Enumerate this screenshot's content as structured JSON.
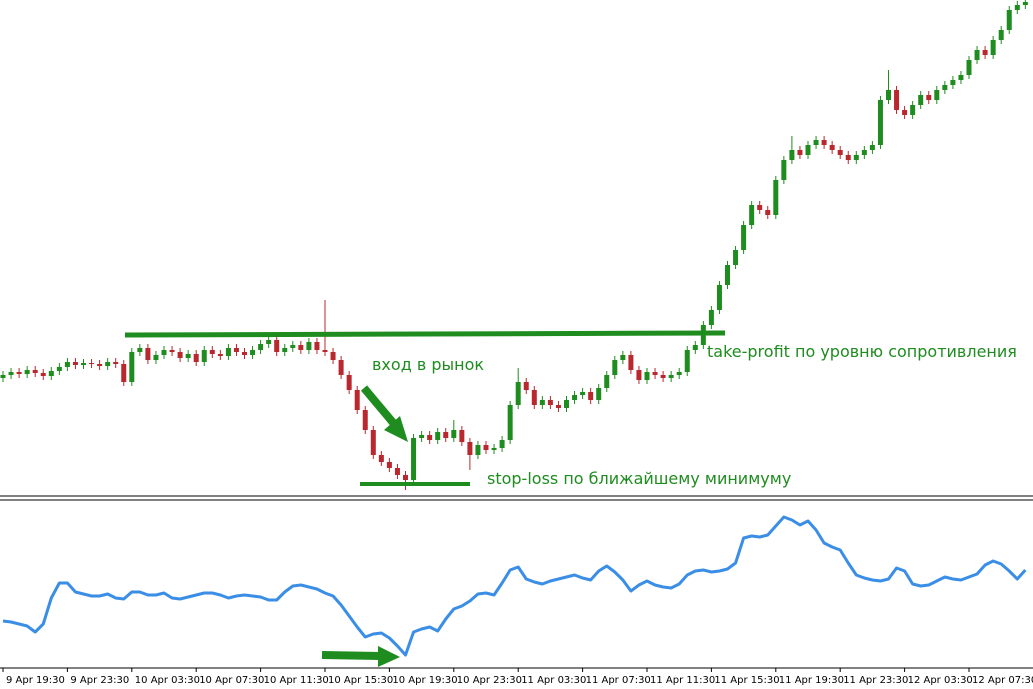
{
  "chart_data": [
    {
      "type": "candlestick",
      "categories": [
        "9 Apr 19:30",
        null,
        null,
        null,
        null,
        null,
        null,
        null,
        "9 Apr 23:30",
        null,
        null,
        null,
        null,
        null,
        null,
        null,
        "10 Apr 03:30",
        null,
        null,
        null,
        null,
        null,
        null,
        null,
        "10 Apr 07:30",
        null,
        null,
        null,
        null,
        null,
        null,
        null,
        "10 Apr 11:30",
        null,
        null,
        null,
        null,
        null,
        null,
        null,
        "10 Apr 15:30",
        null,
        null,
        null,
        null,
        null,
        null,
        null,
        "10 Apr 19:30",
        null,
        null,
        null,
        null,
        null,
        null,
        null,
        "10 Apr 23:30",
        null,
        null,
        null,
        null,
        null,
        null,
        null,
        "11 Apr 03:30",
        null,
        null,
        null,
        null,
        null,
        null,
        null,
        "11 Apr 07:30",
        null,
        null,
        null,
        null,
        null,
        null,
        null,
        "11 Apr 11:30",
        null,
        null,
        null,
        null,
        null,
        null,
        null,
        "11 Apr 15:30",
        null,
        null,
        null,
        null,
        null,
        null,
        null,
        "11 Apr 19:30",
        null,
        null,
        null,
        null,
        null,
        null,
        null,
        "11 Apr 23:30",
        null,
        null,
        null,
        null,
        null,
        null,
        null,
        "12 Apr 03:30",
        null,
        null,
        null,
        null,
        null,
        null,
        null,
        "12 Apr 07:30",
        null,
        null,
        null,
        null,
        null,
        null,
        null
      ],
      "open": [
        122,
        125,
        128,
        126,
        130,
        127,
        124,
        129,
        133,
        138,
        135,
        137,
        136,
        134,
        138,
        136,
        118,
        148,
        152,
        140,
        145,
        150,
        148,
        142,
        146,
        138,
        150,
        146,
        144,
        152,
        148,
        145,
        150,
        156,
        160,
        148,
        152,
        155,
        150,
        158,
        150,
        148,
        140,
        125,
        110,
        90,
        70,
        45,
        38,
        32,
        25,
        20,
        62,
        65,
        60,
        68,
        62,
        70,
        58,
        45,
        55,
        50,
        52,
        60,
        95,
        118,
        110,
        95,
        100,
        95,
        92,
        100,
        105,
        108,
        100,
        112,
        125,
        140,
        145,
        130,
        120,
        128,
        125,
        122,
        125,
        128,
        150,
        155,
        175,
        190,
        215,
        235,
        250,
        275,
        295,
        290,
        285,
        320,
        340,
        350,
        345,
        355,
        360,
        355,
        350,
        345,
        340,
        345,
        350,
        355,
        400,
        410,
        390,
        385,
        395,
        405,
        400,
        410,
        415,
        420,
        425,
        440,
        450,
        445,
        460,
        470,
        490,
        495
      ],
      "high": [
        129,
        132,
        132,
        134,
        134,
        131,
        133,
        137,
        142,
        142,
        141,
        141,
        140,
        142,
        142,
        140,
        152,
        156,
        156,
        149,
        154,
        154,
        152,
        150,
        150,
        154,
        154,
        150,
        156,
        156,
        152,
        154,
        160,
        164,
        164,
        156,
        159,
        159,
        162,
        162,
        200,
        152,
        144,
        129,
        114,
        94,
        74,
        49,
        42,
        36,
        29,
        66,
        69,
        69,
        72,
        72,
        80,
        74,
        62,
        59,
        59,
        56,
        64,
        99,
        132,
        122,
        114,
        104,
        104,
        99,
        104,
        109,
        112,
        112,
        116,
        129,
        144,
        149,
        149,
        134,
        132,
        132,
        129,
        129,
        132,
        154,
        159,
        179,
        194,
        219,
        239,
        254,
        279,
        299,
        299,
        294,
        324,
        344,
        364,
        354,
        359,
        364,
        364,
        359,
        354,
        349,
        349,
        354,
        359,
        404,
        430,
        414,
        394,
        399,
        409,
        409,
        414,
        419,
        424,
        429,
        444,
        454,
        454,
        464,
        474,
        494,
        499,
        502
      ],
      "low": [
        118,
        121,
        122,
        122,
        123,
        120,
        120,
        125,
        129,
        131,
        131,
        132,
        130,
        130,
        132,
        114,
        114,
        144,
        136,
        136,
        141,
        144,
        138,
        138,
        134,
        134,
        142,
        140,
        140,
        144,
        141,
        141,
        146,
        152,
        144,
        144,
        148,
        146,
        146,
        146,
        144,
        136,
        121,
        106,
        86,
        66,
        41,
        34,
        28,
        21,
        10,
        16,
        58,
        56,
        56,
        58,
        58,
        54,
        30,
        41,
        46,
        46,
        48,
        56,
        91,
        106,
        91,
        91,
        91,
        88,
        88,
        96,
        101,
        96,
        96,
        108,
        121,
        136,
        126,
        116,
        116,
        121,
        118,
        118,
        121,
        124,
        146,
        151,
        171,
        186,
        211,
        231,
        246,
        271,
        286,
        281,
        281,
        316,
        336,
        341,
        341,
        351,
        351,
        346,
        341,
        336,
        336,
        341,
        346,
        351,
        396,
        386,
        381,
        381,
        391,
        396,
        396,
        406,
        411,
        416,
        421,
        436,
        441,
        441,
        456,
        466,
        486,
        491
      ],
      "close": [
        125,
        128,
        126,
        130,
        127,
        124,
        129,
        133,
        138,
        135,
        137,
        136,
        134,
        138,
        136,
        118,
        148,
        152,
        140,
        145,
        150,
        148,
        142,
        146,
        138,
        150,
        146,
        144,
        152,
        148,
        145,
        150,
        156,
        160,
        148,
        152,
        155,
        150,
        158,
        150,
        148,
        140,
        125,
        110,
        90,
        70,
        45,
        38,
        32,
        25,
        20,
        62,
        65,
        60,
        68,
        62,
        70,
        58,
        45,
        55,
        50,
        52,
        60,
        95,
        118,
        110,
        95,
        100,
        95,
        92,
        100,
        105,
        108,
        100,
        112,
        125,
        140,
        145,
        130,
        120,
        128,
        125,
        122,
        125,
        128,
        150,
        155,
        175,
        190,
        215,
        235,
        250,
        275,
        295,
        290,
        285,
        320,
        340,
        350,
        345,
        355,
        360,
        355,
        350,
        345,
        340,
        345,
        350,
        355,
        400,
        410,
        390,
        385,
        395,
        405,
        400,
        410,
        415,
        420,
        425,
        440,
        450,
        445,
        460,
        470,
        490,
        495,
        498
      ],
      "up_color": "#1e8c1e",
      "down_color": "#b8282e",
      "ylim": [
        0,
        500
      ],
      "annotations": [
        "вход в рынок",
        "take-profit по уровню сопротивления",
        "stop-loss по ближайшему минимуму"
      ]
    },
    {
      "type": "line",
      "series": [
        {
          "color": "#3a8ee6",
          "values": [
            49,
            48,
            46,
            44,
            38,
            46,
            72,
            87,
            87,
            78,
            76,
            74,
            74,
            76,
            72,
            71,
            78,
            78,
            75,
            75,
            77,
            72,
            71,
            73,
            75,
            77,
            77,
            75,
            72,
            74,
            75,
            74,
            73,
            70,
            70,
            78,
            84,
            85,
            83,
            81,
            77,
            74,
            65,
            54,
            43,
            33,
            36,
            37,
            32,
            24,
            15,
            38,
            41,
            43,
            39,
            51,
            61,
            64,
            69,
            76,
            77,
            75,
            87,
            100,
            103,
            91,
            88,
            86,
            89,
            91,
            93,
            95,
            92,
            90,
            99,
            104,
            98,
            90,
            79,
            85,
            89,
            85,
            83,
            82,
            86,
            95,
            99,
            100,
            98,
            99,
            101,
            107,
            132,
            134,
            133,
            135,
            144,
            153,
            150,
            145,
            149,
            140,
            127,
            123,
            120,
            107,
            95,
            92,
            90,
            89,
            91,
            102,
            99,
            86,
            84,
            85,
            89,
            93,
            91,
            90,
            93,
            96,
            105,
            109,
            106,
            99,
            91,
            100
          ]
        }
      ],
      "ylim": [
        0,
        170
      ]
    }
  ]
}
